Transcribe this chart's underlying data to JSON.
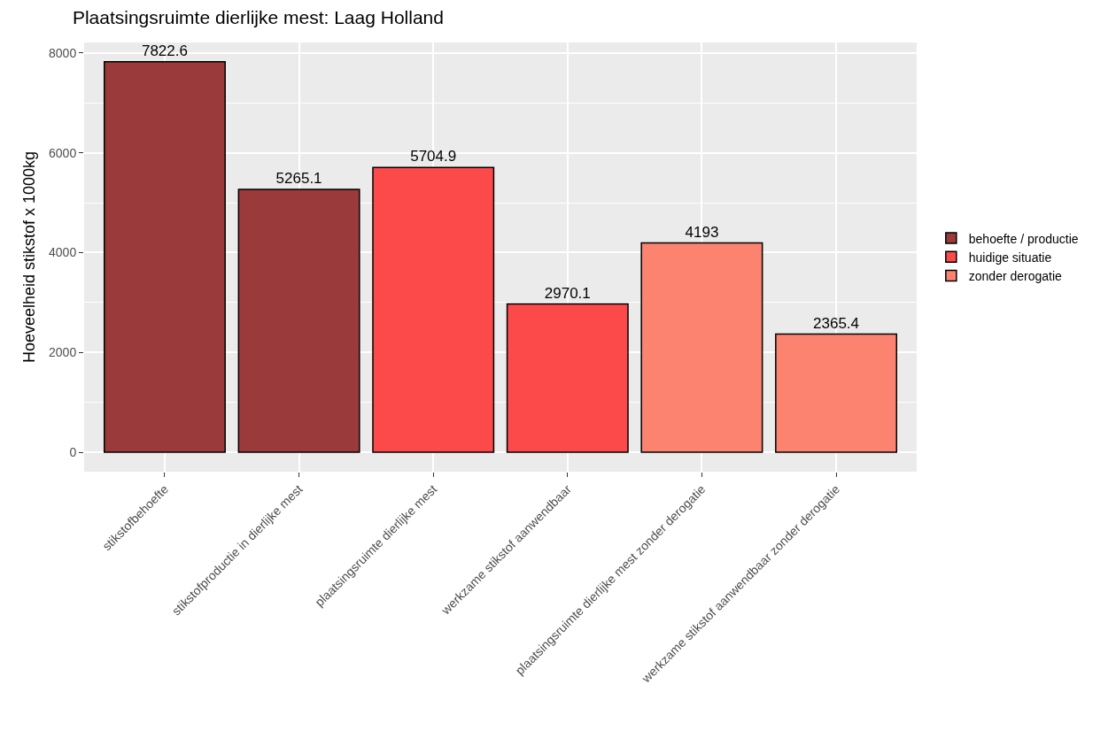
{
  "chart_data": {
    "type": "bar",
    "title": "Plaatsingsruimte dierlijke mest: Laag Holland",
    "ylabel": "Hoeveelheid stikstof x 1000kg",
    "categories": [
      "stikstofbehoefte",
      "stikstofproductie in dierlijke mest",
      "plaatsingsruimte dierlijke mest",
      "werkzame stikstof aanwendbaar",
      "plaatsingsruimte dierlijke mest zonder derogatie",
      "werkzame stikstof aanwendbaar zonder derogatie"
    ],
    "series": [
      {
        "name": "behoefte / productie",
        "color": "#9a3a3a",
        "values": [
          7822.6,
          5265.1,
          null,
          null,
          null,
          null
        ]
      },
      {
        "name": "huidige situatie",
        "color": "#fc4a4a",
        "values": [
          null,
          null,
          5704.9,
          2970.1,
          null,
          null
        ]
      },
      {
        "name": "zonder derogatie",
        "color": "#fc8370",
        "values": [
          null,
          null,
          null,
          null,
          4193,
          2365.4
        ]
      }
    ],
    "ylim": [
      -390,
      8210
    ],
    "yticks": [
      0,
      2000,
      4000,
      6000,
      8000
    ],
    "grid": true,
    "legend": "right",
    "data_labels": true
  }
}
